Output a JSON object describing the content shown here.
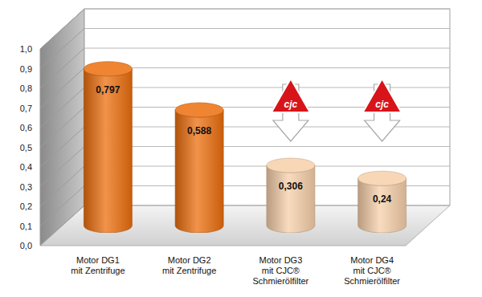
{
  "chart_data": {
    "type": "bar",
    "categories": [
      "Motor DG1\nmit Zentrifuge",
      "Motor DG2\nmit Zentrifuge",
      "Motor DG3\nmit CJC®\nSchmierölfilter",
      "Motor DG4\nmit CJC®\nSchmierölfilter"
    ],
    "values": [
      0.797,
      0.588,
      0.306,
      0.24
    ],
    "value_labels": [
      "0,797",
      "0,588",
      "0,306",
      "0,24"
    ],
    "colors": [
      "#ec6f0e",
      "#ec6f0e",
      "#f7d0aa",
      "#f7d0aa"
    ],
    "ylim": [
      0,
      1
    ],
    "yticks": [
      {
        "value": 0,
        "label": "0,0"
      },
      {
        "value": 0.1,
        "label": "0,1"
      },
      {
        "value": 0.2,
        "label": "0,2"
      },
      {
        "value": 0.3,
        "label": "0,3"
      },
      {
        "value": 0.4,
        "label": "0,4"
      },
      {
        "value": 0.5,
        "label": "0,5"
      },
      {
        "value": 0.6,
        "label": "0,6"
      },
      {
        "value": 0.7,
        "label": "0,7"
      },
      {
        "value": 0.8,
        "label": "0,8"
      },
      {
        "value": 0.9,
        "label": "0,9"
      },
      {
        "value": 1,
        "label": "1,0"
      }
    ],
    "grid": true,
    "data_labels": true,
    "annotations": [
      "cjc",
      "cjc"
    ]
  }
}
